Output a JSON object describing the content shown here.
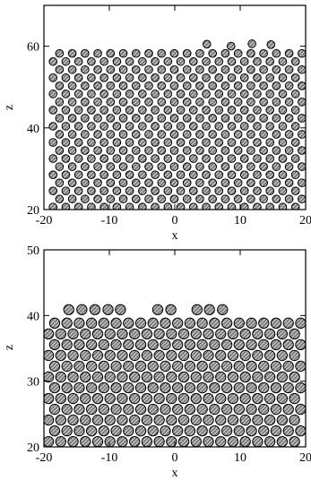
{
  "chart_data": [
    {
      "type": "scatter",
      "marker": "hatched-disc",
      "xlabel": "x",
      "ylabel": "z",
      "xlim": [
        -20,
        20
      ],
      "ylim": [
        20,
        70
      ],
      "xticks": [
        -20,
        -10,
        0,
        10,
        20
      ],
      "yticks": [
        20,
        40,
        60
      ],
      "xtick_labels": [
        "-20",
        "-10",
        "0",
        "10",
        "20"
      ],
      "ytick_labels": [
        "20",
        "40",
        "60"
      ],
      "particle_diameter": 1.9,
      "series": [
        {
          "lattice": {
            "layers": 20,
            "z_first": 20.6,
            "z_step": 1.98,
            "x_first": -18.6,
            "x_step": 1.95,
            "per_layer": 20,
            "alternate_offset": 0.98
          },
          "extra_points": [
            {
              "x": 4.9,
              "z": 60.5
            },
            {
              "x": 11.8,
              "z": 60.6
            },
            {
              "x": 14.7,
              "z": 60.4
            },
            {
              "x": 8.6,
              "z": 60.0
            }
          ]
        }
      ]
    },
    {
      "type": "scatter",
      "marker": "hatched-disc",
      "xlabel": "x",
      "ylabel": "z",
      "xlim": [
        -20,
        20
      ],
      "ylim": [
        20,
        50
      ],
      "xticks": [
        -20,
        -10,
        0,
        10,
        20
      ],
      "yticks": [
        20,
        30,
        40,
        50
      ],
      "xtick_labels": [
        "-20",
        "-10",
        "0",
        "10",
        "20"
      ],
      "ytick_labels": [
        "20",
        "30",
        "40",
        "50"
      ],
      "particle_diameter": 1.55,
      "series": [
        {
          "lattice": {
            "layers": 12,
            "z_first": 20.8,
            "z_step": 1.64,
            "x_first": -19.3,
            "x_step": 1.88,
            "per_layer": 21,
            "alternate_offset": 0.94
          },
          "top_layer": {
            "z": 40.9,
            "x": [
              -16.2,
              -14.2,
              -12.2,
              -10.2,
              -8.3,
              -2.6,
              -0.6,
              3.4,
              5.3,
              7.3
            ]
          }
        }
      ]
    }
  ]
}
